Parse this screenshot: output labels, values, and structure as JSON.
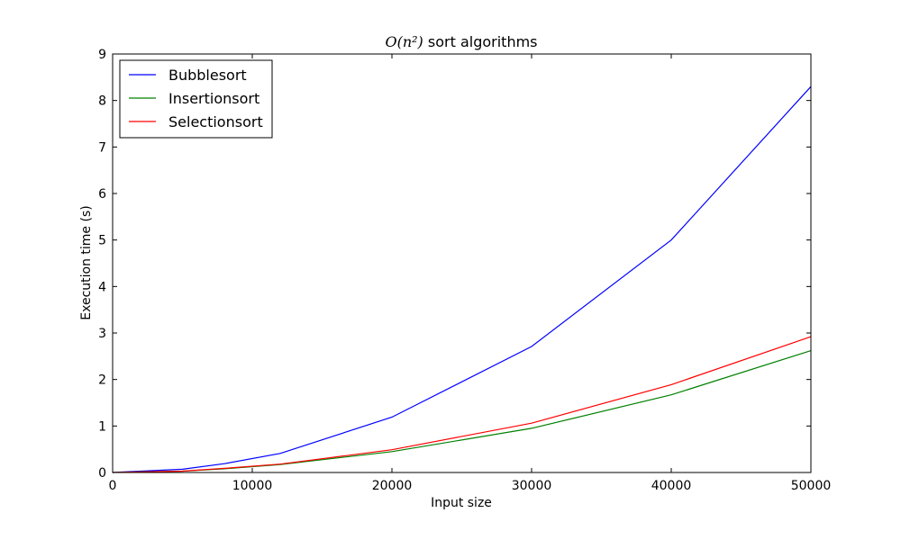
{
  "chart_data": {
    "type": "line",
    "title": {
      "math": "O(n²)",
      "text": "sort algorithms"
    },
    "xlabel": "Input size",
    "ylabel": "Execution time (s)",
    "xlim": [
      0,
      50000
    ],
    "ylim": [
      0,
      9
    ],
    "xticks": [
      0,
      10000,
      20000,
      30000,
      40000,
      50000
    ],
    "yticks": [
      0,
      1,
      2,
      3,
      4,
      5,
      6,
      7,
      8,
      9
    ],
    "grid": false,
    "legend_position": "top-left",
    "series": [
      {
        "name": "Bubblesort",
        "color": "#0000ff",
        "x": [
          0,
          5000,
          8000,
          12000,
          20000,
          30000,
          40000,
          50000
        ],
        "y": [
          0.0,
          0.07,
          0.19,
          0.41,
          1.19,
          2.71,
          5.0,
          8.3
        ]
      },
      {
        "name": "Insertionsort",
        "color": "#008000",
        "x": [
          0,
          5000,
          8000,
          12000,
          20000,
          30000,
          40000,
          50000
        ],
        "y": [
          0.0,
          0.03,
          0.08,
          0.17,
          0.45,
          0.95,
          1.67,
          2.62
        ]
      },
      {
        "name": "Selectionsort",
        "color": "#ff0000",
        "x": [
          0,
          5000,
          8000,
          12000,
          20000,
          30000,
          40000,
          50000
        ],
        "y": [
          0.0,
          0.03,
          0.09,
          0.18,
          0.49,
          1.06,
          1.89,
          2.92
        ]
      }
    ]
  }
}
